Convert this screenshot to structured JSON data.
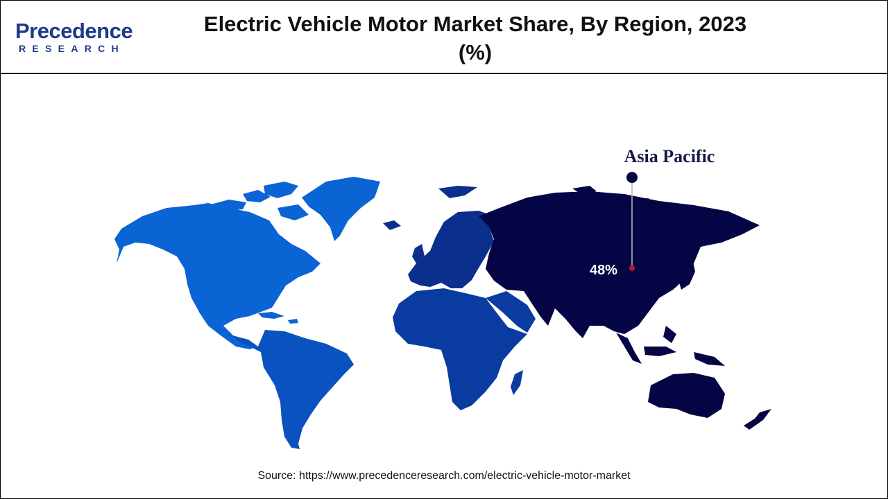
{
  "header": {
    "logo_word": "Precedence",
    "logo_sub": "RESEARCH",
    "title": "Electric Vehicle Motor Market Share, By Region, 2023 (%)"
  },
  "chart_data": {
    "type": "choropleth-map",
    "regions": [
      {
        "name": "North America",
        "color": "#0a64d4"
      },
      {
        "name": "Latin America",
        "color": "#0a52bf"
      },
      {
        "name": "Europe",
        "color": "#0a2f8c"
      },
      {
        "name": "Middle East and Africa",
        "color": "#0a3ba1"
      },
      {
        "name": "Asia Pacific",
        "color": "#050545",
        "value": 48,
        "value_label": "48%"
      }
    ],
    "highlight": {
      "label": "Asia Pacific",
      "value_text": "48%",
      "marker_color": "#c0152b"
    }
  },
  "footer": {
    "source": "Source: https://www.precedenceresearch.com/electric-vehicle-motor-market"
  }
}
